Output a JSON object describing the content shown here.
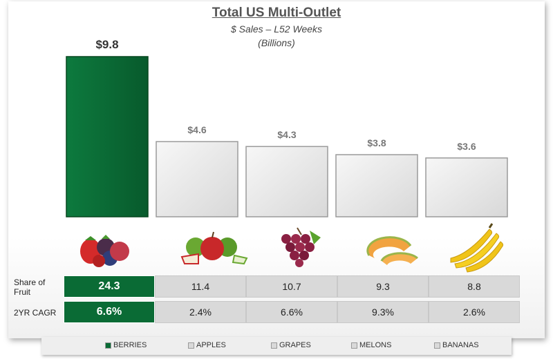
{
  "chart_data": {
    "type": "bar",
    "title": "Total US Multi-Outlet",
    "subtitle": "$ Sales – L52 Weeks",
    "subtitle2": "(Billions)",
    "categories": [
      "BERRIES",
      "APPLES",
      "GRAPES",
      "MELONS",
      "BANANAS"
    ],
    "values": [
      9.8,
      4.6,
      4.3,
      3.8,
      3.6
    ],
    "data_labels": [
      "$9.8",
      "$4.6",
      "$4.3",
      "$3.8",
      "$3.6"
    ],
    "highlight_color": "#0a6b35",
    "bar_color": "#e6e6e6",
    "legend_position": "bottom",
    "grid": false
  },
  "table": {
    "row_labels": [
      "Share of Fruit",
      "2YR CAGR"
    ],
    "share_of_fruit": [
      "24.3",
      "11.4",
      "10.7",
      "9.3",
      "8.8"
    ],
    "cagr": [
      "6.6%",
      "2.4%",
      "6.6%",
      "9.3%",
      "2.6%"
    ]
  },
  "icons": [
    "berries-icon",
    "apples-icon",
    "grapes-icon",
    "melons-icon",
    "bananas-icon"
  ]
}
